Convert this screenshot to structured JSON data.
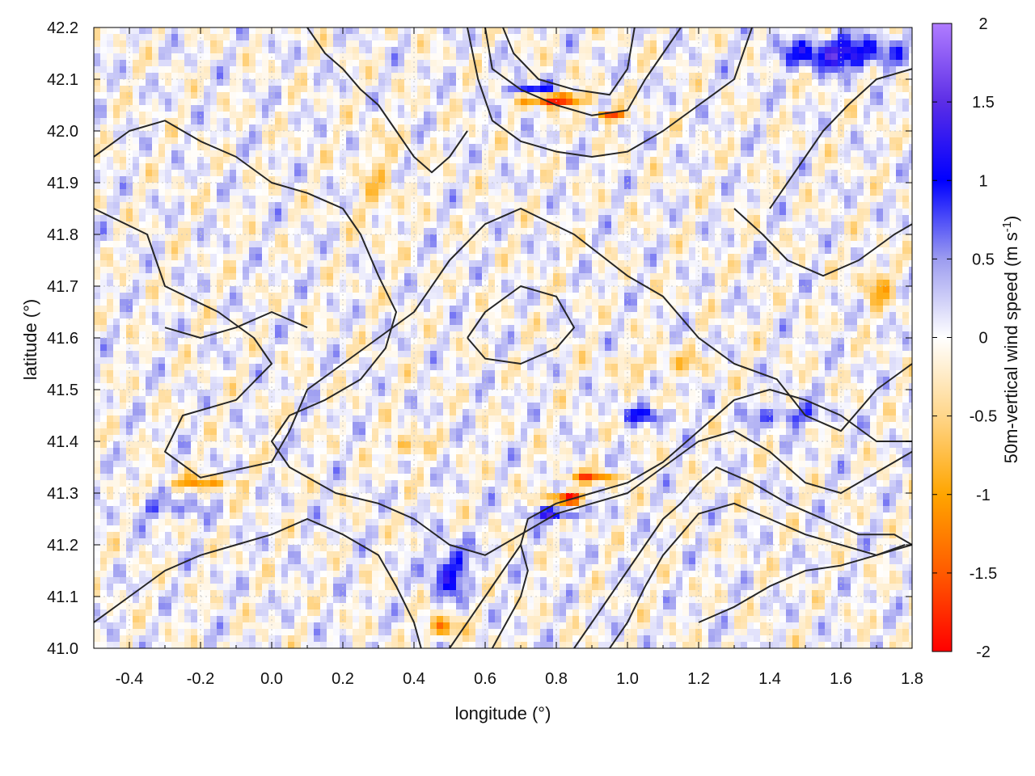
{
  "chart_data": {
    "type": "heatmap",
    "xlabel": "longitude (°)",
    "ylabel": "latitude (°)",
    "colorbar_label": "50m-vertical wind speed (m s-1)",
    "colorbar_label_parts": {
      "main": "50m-vertical wind speed (m s",
      "sup": "-1",
      "tail": ")"
    },
    "xlim": [
      -0.5,
      1.8
    ],
    "ylim": [
      41.0,
      42.2
    ],
    "clim": [
      -2,
      2
    ],
    "x_ticks": [
      -0.4,
      -0.2,
      0.0,
      0.2,
      0.4,
      0.6,
      0.8,
      1.0,
      1.2,
      1.4,
      1.6,
      1.8
    ],
    "x_tick_labels": [
      "-0.4",
      "-0.2",
      "0.0",
      "0.2",
      "0.4",
      "0.6",
      "0.8",
      "1.0",
      "1.2",
      "1.4",
      "1.6",
      "1.8"
    ],
    "y_ticks": [
      41.0,
      41.1,
      41.2,
      41.3,
      41.4,
      41.5,
      41.6,
      41.7,
      41.8,
      41.9,
      42.0,
      42.1,
      42.2
    ],
    "y_tick_labels": [
      "41.0",
      "41.1",
      "41.2",
      "41.3",
      "41.4",
      "41.5",
      "41.6",
      "41.7",
      "41.8",
      "41.9",
      "42.0",
      "42.1",
      "42.2"
    ],
    "colorbar_ticks": [
      -2,
      -1.5,
      -1,
      -0.5,
      0,
      0.5,
      1,
      1.5,
      2
    ],
    "colorbar_tick_labels": [
      "-2",
      "-1.5",
      "-1",
      "-0.5",
      "0",
      "0.5",
      "1",
      "1.5",
      "2"
    ],
    "grid": true,
    "colormap": [
      {
        "value": -2.0,
        "color": "#ff0000"
      },
      {
        "value": -1.5,
        "color": "#ff5a00"
      },
      {
        "value": -1.0,
        "color": "#ffa500"
      },
      {
        "value": -0.5,
        "color": "#ffd68a"
      },
      {
        "value": 0.0,
        "color": "#ffffff"
      },
      {
        "value": 0.5,
        "color": "#9c9cf0"
      },
      {
        "value": 1.0,
        "color": "#0000ff"
      },
      {
        "value": 1.5,
        "color": "#5c2ee6"
      },
      {
        "value": 2.0,
        "color": "#b07cff"
      }
    ],
    "features": [
      {
        "lon": 0.8,
        "lat": 42.06,
        "w": -2.0,
        "sx": 0.08,
        "sy": 0.012
      },
      {
        "lon": 0.95,
        "lat": 42.03,
        "w": -1.8,
        "sx": 0.04,
        "sy": 0.01
      },
      {
        "lon": 0.83,
        "lat": 41.29,
        "w": -2.0,
        "sx": 0.05,
        "sy": 0.012
      },
      {
        "lon": 0.9,
        "lat": 41.33,
        "w": -1.3,
        "sx": 0.08,
        "sy": 0.01
      },
      {
        "lon": 0.48,
        "lat": 41.04,
        "w": -1.3,
        "sx": 0.04,
        "sy": 0.02
      },
      {
        "lon": -0.2,
        "lat": 41.32,
        "w": -0.9,
        "sx": 0.12,
        "sy": 0.012
      },
      {
        "lon": 0.38,
        "lat": 41.39,
        "w": -0.8,
        "sx": 0.05,
        "sy": 0.02
      },
      {
        "lon": 0.8,
        "lat": 41.26,
        "w": 1.3,
        "sx": 0.07,
        "sy": 0.012
      },
      {
        "lon": 0.72,
        "lat": 42.08,
        "w": 1.2,
        "sx": 0.06,
        "sy": 0.012
      },
      {
        "lon": 1.6,
        "lat": 42.15,
        "w": 1.4,
        "sx": 0.15,
        "sy": 0.03
      },
      {
        "lon": 0.5,
        "lat": 41.15,
        "w": 1.0,
        "sx": 0.06,
        "sy": 0.05
      },
      {
        "lon": 1.05,
        "lat": 41.45,
        "w": 0.8,
        "sx": 0.08,
        "sy": 0.015
      },
      {
        "lon": 1.45,
        "lat": 41.45,
        "w": 0.8,
        "sx": 0.1,
        "sy": 0.02
      },
      {
        "lon": -0.3,
        "lat": 41.27,
        "w": 0.6,
        "sx": 0.1,
        "sy": 0.02
      },
      {
        "lon": 1.7,
        "lat": 41.7,
        "w": -0.8,
        "sx": 0.04,
        "sy": 0.04
      },
      {
        "lon": 1.1,
        "lat": 41.55,
        "w": -0.5,
        "sx": 0.15,
        "sy": 0.02
      },
      {
        "lon": 0.3,
        "lat": 41.9,
        "w": -0.4,
        "sx": 0.06,
        "sy": 0.1
      }
    ],
    "contours": [
      [
        [
          -0.5,
          41.85
        ],
        [
          -0.35,
          41.8
        ],
        [
          -0.3,
          41.7
        ],
        [
          -0.15,
          41.65
        ],
        [
          -0.05,
          41.6
        ],
        [
          0.0,
          41.55
        ],
        [
          -0.1,
          41.48
        ],
        [
          -0.25,
          41.45
        ],
        [
          -0.3,
          41.38
        ],
        [
          -0.2,
          41.33
        ],
        [
          0.0,
          41.36
        ],
        [
          0.05,
          41.42
        ],
        [
          0.1,
          41.5
        ],
        [
          0.2,
          41.55
        ],
        [
          0.3,
          41.6
        ],
        [
          0.4,
          41.65
        ],
        [
          0.5,
          41.75
        ],
        [
          0.6,
          41.82
        ],
        [
          0.7,
          41.85
        ],
        [
          0.85,
          41.8
        ],
        [
          1.0,
          41.72
        ],
        [
          1.1,
          41.68
        ],
        [
          1.2,
          41.6
        ],
        [
          1.3,
          41.55
        ],
        [
          1.42,
          41.52
        ],
        [
          1.5,
          41.45
        ],
        [
          1.6,
          41.42
        ],
        [
          1.7,
          41.5
        ],
        [
          1.8,
          41.55
        ]
      ],
      [
        [
          -0.5,
          41.95
        ],
        [
          -0.4,
          42.0
        ],
        [
          -0.3,
          42.02
        ],
        [
          -0.2,
          41.98
        ],
        [
          -0.1,
          41.95
        ],
        [
          0.0,
          41.9
        ],
        [
          0.1,
          41.88
        ],
        [
          0.2,
          41.85
        ],
        [
          0.25,
          41.8
        ],
        [
          0.3,
          41.72
        ],
        [
          0.35,
          41.65
        ],
        [
          0.32,
          41.58
        ],
        [
          0.25,
          41.52
        ],
        [
          0.15,
          41.48
        ],
        [
          0.05,
          41.45
        ],
        [
          0.0,
          41.4
        ],
        [
          0.05,
          41.35
        ],
        [
          0.18,
          41.3
        ],
        [
          0.3,
          41.28
        ],
        [
          0.4,
          41.25
        ],
        [
          0.5,
          41.2
        ],
        [
          0.6,
          41.18
        ],
        [
          0.7,
          41.22
        ],
        [
          0.8,
          41.26
        ],
        [
          0.9,
          41.28
        ],
        [
          1.0,
          41.3
        ],
        [
          1.1,
          41.35
        ],
        [
          1.2,
          41.4
        ],
        [
          1.3,
          41.42
        ],
        [
          1.4,
          41.38
        ],
        [
          1.5,
          41.32
        ],
        [
          1.6,
          41.3
        ],
        [
          1.7,
          41.34
        ],
        [
          1.8,
          41.38
        ]
      ],
      [
        [
          0.6,
          42.2
        ],
        [
          0.62,
          42.12
        ],
        [
          0.7,
          42.08
        ],
        [
          0.8,
          42.05
        ],
        [
          0.9,
          42.03
        ],
        [
          1.0,
          42.04
        ],
        [
          1.05,
          42.1
        ],
        [
          1.1,
          42.15
        ],
        [
          1.15,
          42.2
        ]
      ],
      [
        [
          0.65,
          42.2
        ],
        [
          0.68,
          42.15
        ],
        [
          0.75,
          42.1
        ],
        [
          0.85,
          42.08
        ],
        [
          0.95,
          42.07
        ],
        [
          1.0,
          42.12
        ],
        [
          1.02,
          42.2
        ]
      ],
      [
        [
          0.55,
          42.2
        ],
        [
          0.58,
          42.1
        ],
        [
          0.62,
          42.02
        ],
        [
          0.7,
          41.98
        ],
        [
          0.8,
          41.96
        ],
        [
          0.9,
          41.95
        ],
        [
          1.0,
          41.96
        ],
        [
          1.1,
          42.0
        ],
        [
          1.2,
          42.05
        ],
        [
          1.3,
          42.1
        ],
        [
          1.35,
          42.2
        ]
      ],
      [
        [
          0.5,
          41.0
        ],
        [
          0.55,
          41.05
        ],
        [
          0.6,
          41.1
        ],
        [
          0.65,
          41.15
        ],
        [
          0.7,
          41.2
        ],
        [
          0.72,
          41.25
        ],
        [
          0.8,
          41.28
        ],
        [
          0.9,
          41.3
        ],
        [
          1.0,
          41.32
        ],
        [
          1.1,
          41.36
        ],
        [
          1.2,
          41.42
        ],
        [
          1.3,
          41.48
        ],
        [
          1.4,
          41.5
        ],
        [
          1.5,
          41.48
        ],
        [
          1.6,
          41.45
        ],
        [
          1.7,
          41.4
        ],
        [
          1.8,
          41.4
        ]
      ],
      [
        [
          0.85,
          41.0
        ],
        [
          0.9,
          41.05
        ],
        [
          0.95,
          41.1
        ],
        [
          1.0,
          41.15
        ],
        [
          1.05,
          41.2
        ],
        [
          1.1,
          41.25
        ],
        [
          1.15,
          41.28
        ],
        [
          1.2,
          41.32
        ],
        [
          1.25,
          41.35
        ],
        [
          1.35,
          41.32
        ],
        [
          1.45,
          41.28
        ],
        [
          1.55,
          41.25
        ],
        [
          1.65,
          41.22
        ],
        [
          1.75,
          41.22
        ],
        [
          1.8,
          41.2
        ]
      ],
      [
        [
          0.95,
          41.0
        ],
        [
          1.0,
          41.05
        ],
        [
          1.05,
          41.12
        ],
        [
          1.1,
          41.18
        ],
        [
          1.15,
          41.22
        ],
        [
          1.2,
          41.26
        ],
        [
          1.3,
          41.28
        ],
        [
          1.4,
          41.25
        ],
        [
          1.5,
          41.22
        ],
        [
          1.6,
          41.2
        ],
        [
          1.7,
          41.18
        ],
        [
          1.78,
          41.2
        ]
      ],
      [
        [
          1.2,
          41.05
        ],
        [
          1.3,
          41.08
        ],
        [
          1.4,
          41.12
        ],
        [
          1.5,
          41.15
        ],
        [
          1.6,
          41.16
        ],
        [
          1.7,
          41.18
        ],
        [
          1.8,
          41.2
        ]
      ],
      [
        [
          -0.5,
          41.05
        ],
        [
          -0.4,
          41.1
        ],
        [
          -0.3,
          41.15
        ],
        [
          -0.2,
          41.18
        ],
        [
          -0.1,
          41.2
        ],
        [
          0.0,
          41.22
        ],
        [
          0.1,
          41.25
        ],
        [
          0.2,
          41.22
        ],
        [
          0.3,
          41.18
        ],
        [
          0.35,
          41.12
        ],
        [
          0.4,
          41.05
        ],
        [
          0.42,
          41.0
        ]
      ],
      [
        [
          0.62,
          41.0
        ],
        [
          0.66,
          41.05
        ],
        [
          0.7,
          41.1
        ],
        [
          0.72,
          41.15
        ],
        [
          0.7,
          41.2
        ]
      ],
      [
        [
          0.1,
          42.2
        ],
        [
          0.15,
          42.15
        ],
        [
          0.2,
          42.12
        ],
        [
          0.25,
          42.08
        ],
        [
          0.3,
          42.05
        ],
        [
          0.35,
          42.0
        ],
        [
          0.4,
          41.95
        ],
        [
          0.45,
          41.92
        ],
        [
          0.5,
          41.95
        ],
        [
          0.55,
          42.0
        ]
      ],
      [
        [
          1.4,
          41.85
        ],
        [
          1.45,
          41.9
        ],
        [
          1.5,
          41.95
        ],
        [
          1.55,
          42.0
        ],
        [
          1.62,
          42.05
        ],
        [
          1.7,
          42.1
        ],
        [
          1.8,
          42.12
        ]
      ],
      [
        [
          1.3,
          41.85
        ],
        [
          1.38,
          41.8
        ],
        [
          1.45,
          41.75
        ],
        [
          1.55,
          41.72
        ],
        [
          1.65,
          41.75
        ],
        [
          1.75,
          41.8
        ],
        [
          1.8,
          41.82
        ]
      ],
      [
        [
          -0.3,
          41.62
        ],
        [
          -0.2,
          41.6
        ],
        [
          -0.1,
          41.62
        ],
        [
          0.0,
          41.65
        ],
        [
          0.1,
          41.62
        ]
      ],
      [
        [
          0.55,
          41.6
        ],
        [
          0.6,
          41.65
        ],
        [
          0.7,
          41.7
        ],
        [
          0.8,
          41.68
        ],
        [
          0.85,
          41.62
        ],
        [
          0.8,
          41.58
        ],
        [
          0.7,
          41.55
        ],
        [
          0.6,
          41.56
        ],
        [
          0.55,
          41.6
        ]
      ]
    ]
  }
}
